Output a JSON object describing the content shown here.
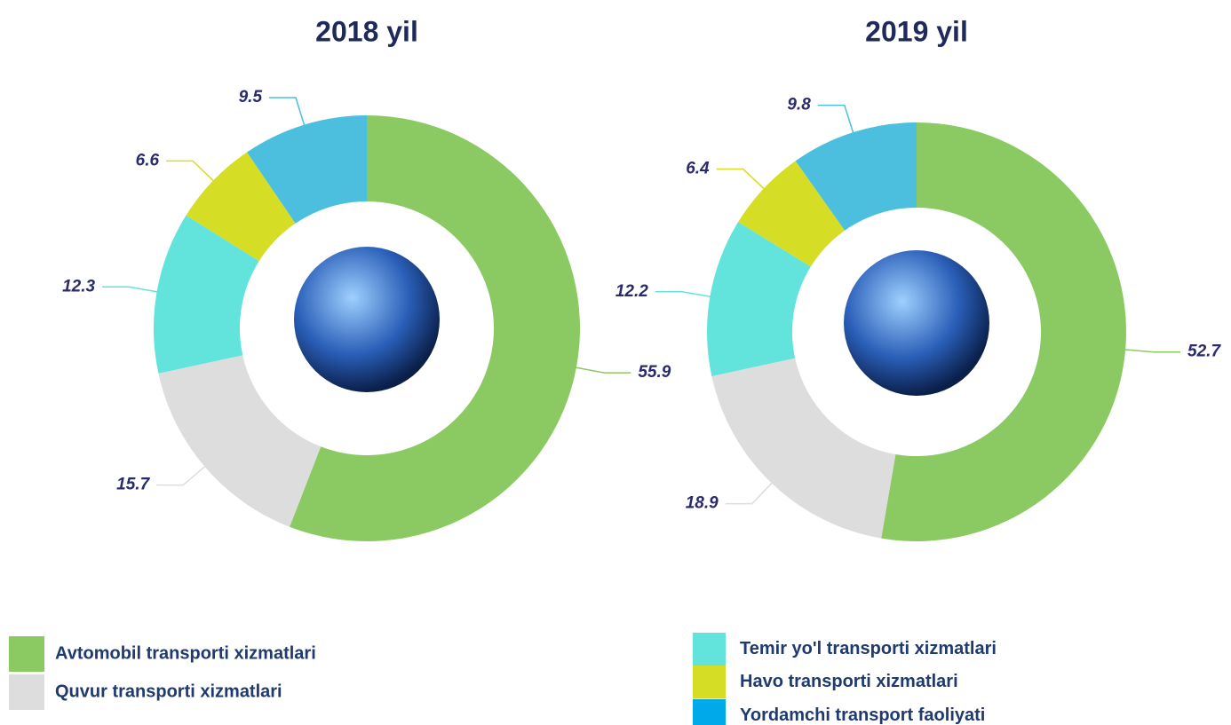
{
  "chart_data": [
    {
      "type": "pie",
      "donut": true,
      "title": "2018 yil",
      "values": [
        55.9,
        15.7,
        12.3,
        6.6,
        9.5
      ],
      "colors": [
        "#8bca63",
        "#dddddd",
        "#62e4dd",
        "#d5dd24",
        "#4bbfdd"
      ]
    },
    {
      "type": "pie",
      "donut": true,
      "title": "2019 yil",
      "values": [
        52.7,
        18.9,
        12.2,
        6.4,
        9.8
      ],
      "colors": [
        "#8bca63",
        "#dddddd",
        "#62e4dd",
        "#d5dd24",
        "#4bbfdd"
      ]
    }
  ],
  "legend": {
    "entries": [
      {
        "name": "Avtomobil transporti xizmatlari",
        "color": "#8bca63"
      },
      {
        "name": "Quvur transporti xizmatlari",
        "color": "#dddddd"
      },
      {
        "name": "Temir yo'l transporti xizmatlari",
        "color": "#62e4dd"
      },
      {
        "name": "Havo transporti xizmatlari",
        "color": "#d5dd24"
      },
      {
        "name": "Yordamchi transport faoliyati",
        "color": "#00a9e9"
      }
    ]
  }
}
